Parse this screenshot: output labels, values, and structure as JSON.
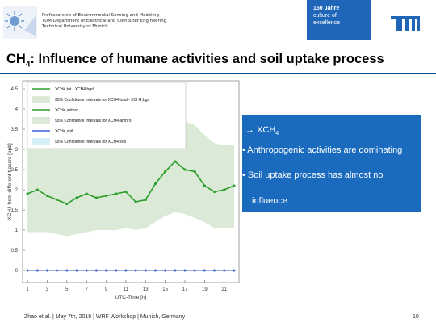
{
  "header": {
    "line1": "Professorship of Environmental Sensing and Modeling",
    "line2": "TUM Department of Electrical and Computer Engineering",
    "line3": "Technical University of Munich",
    "badge_year": "150 Jahre",
    "badge_line1": "culture of",
    "badge_line2": "excellence",
    "tum_logo": "TUM",
    "left_logo_icon": "sun-sensor-logo-icon",
    "tum_logo_icon": "tum-logo-icon"
  },
  "title": {
    "prefix": "CH",
    "sub": "4",
    "rest": ": Influence of humane activities and soil uptake process"
  },
  "panel": {
    "head": "→ XCH",
    "head_sub": "4",
    "head_tail": " :",
    "bullet1": "• Anthropogenic activities are dominating",
    "bullet2": "• Soil uptake process has almost no",
    "bullet2_cont": "influence",
    "color": "#1a6bbd"
  },
  "footer": {
    "left": "Zhao et al. | May 7th, 2019 | WRF Workshop | Munich, Germany",
    "page": "10"
  },
  "chart_data": {
    "type": "line",
    "xlabel": "UTC-Time [h]",
    "ylabel": "XCH4 from different tracers [ppb]",
    "ylim": [
      -0.3,
      4.7
    ],
    "xlim": [
      0.5,
      22.5
    ],
    "x_ticks": [
      1,
      3,
      5,
      7,
      9,
      11,
      13,
      15,
      17,
      19,
      21
    ],
    "y_ticks": [
      0,
      0.5,
      1,
      1.5,
      2,
      2.5,
      3,
      3.5,
      4,
      4.5
    ],
    "legend": [
      "XCH4,tot - XCH4,bgd",
      "95% Confidence Intervals for XCH4,total - XCH4,bgd",
      "XCH4,anthro",
      "95% Confidence Intervals for XCH4,anthro",
      "XCH4,soil",
      "95% Confidence Intervals for XCH4,soil"
    ],
    "x": [
      1,
      2,
      3,
      4,
      5,
      6,
      7,
      8,
      9,
      10,
      11,
      12,
      13,
      14,
      15,
      16,
      17,
      18,
      19,
      20,
      21,
      22
    ],
    "series": [
      {
        "name": "XCH4,tot - XCH4,bgd",
        "color": "#2e9e2e",
        "values": [
          1.9,
          2.0,
          1.85,
          1.75,
          1.65,
          1.8,
          1.9,
          1.8,
          1.85,
          1.9,
          1.95,
          1.7,
          1.75,
          2.15,
          2.45,
          2.7,
          2.5,
          2.45,
          2.1,
          1.95,
          2.0,
          2.1
        ]
      },
      {
        "name": "XCH4,anthro",
        "color": "#2e9e2e",
        "values": [
          1.9,
          2.0,
          1.85,
          1.75,
          1.65,
          1.8,
          1.9,
          1.8,
          1.85,
          1.9,
          1.95,
          1.7,
          1.75,
          2.15,
          2.45,
          2.7,
          2.5,
          2.45,
          2.1,
          1.95,
          2.0,
          2.1
        ]
      },
      {
        "name": "XCH4,soil",
        "color": "#3a5fcd",
        "values": [
          0,
          0,
          0,
          0,
          0,
          0,
          0,
          0,
          0,
          0,
          0,
          0,
          0,
          0,
          0,
          0,
          0,
          0,
          0,
          0,
          0,
          0
        ]
      }
    ],
    "ci_upper": [
      3.05,
      3.1,
      3.15,
      3.0,
      3.0,
      3.1,
      3.15,
      3.25,
      3.2,
      3.2,
      3.3,
      3.25,
      3.4,
      3.6,
      3.8,
      3.85,
      3.7,
      3.6,
      3.35,
      3.15,
      3.1,
      3.1
    ],
    "ci_lower": [
      0.95,
      0.95,
      0.95,
      0.9,
      0.85,
      0.9,
      0.95,
      1.0,
      1.0,
      1.0,
      1.05,
      1.0,
      1.05,
      1.2,
      1.35,
      1.45,
      1.4,
      1.3,
      1.2,
      1.05,
      1.05,
      1.05
    ],
    "ci_color": "#dbead6"
  }
}
